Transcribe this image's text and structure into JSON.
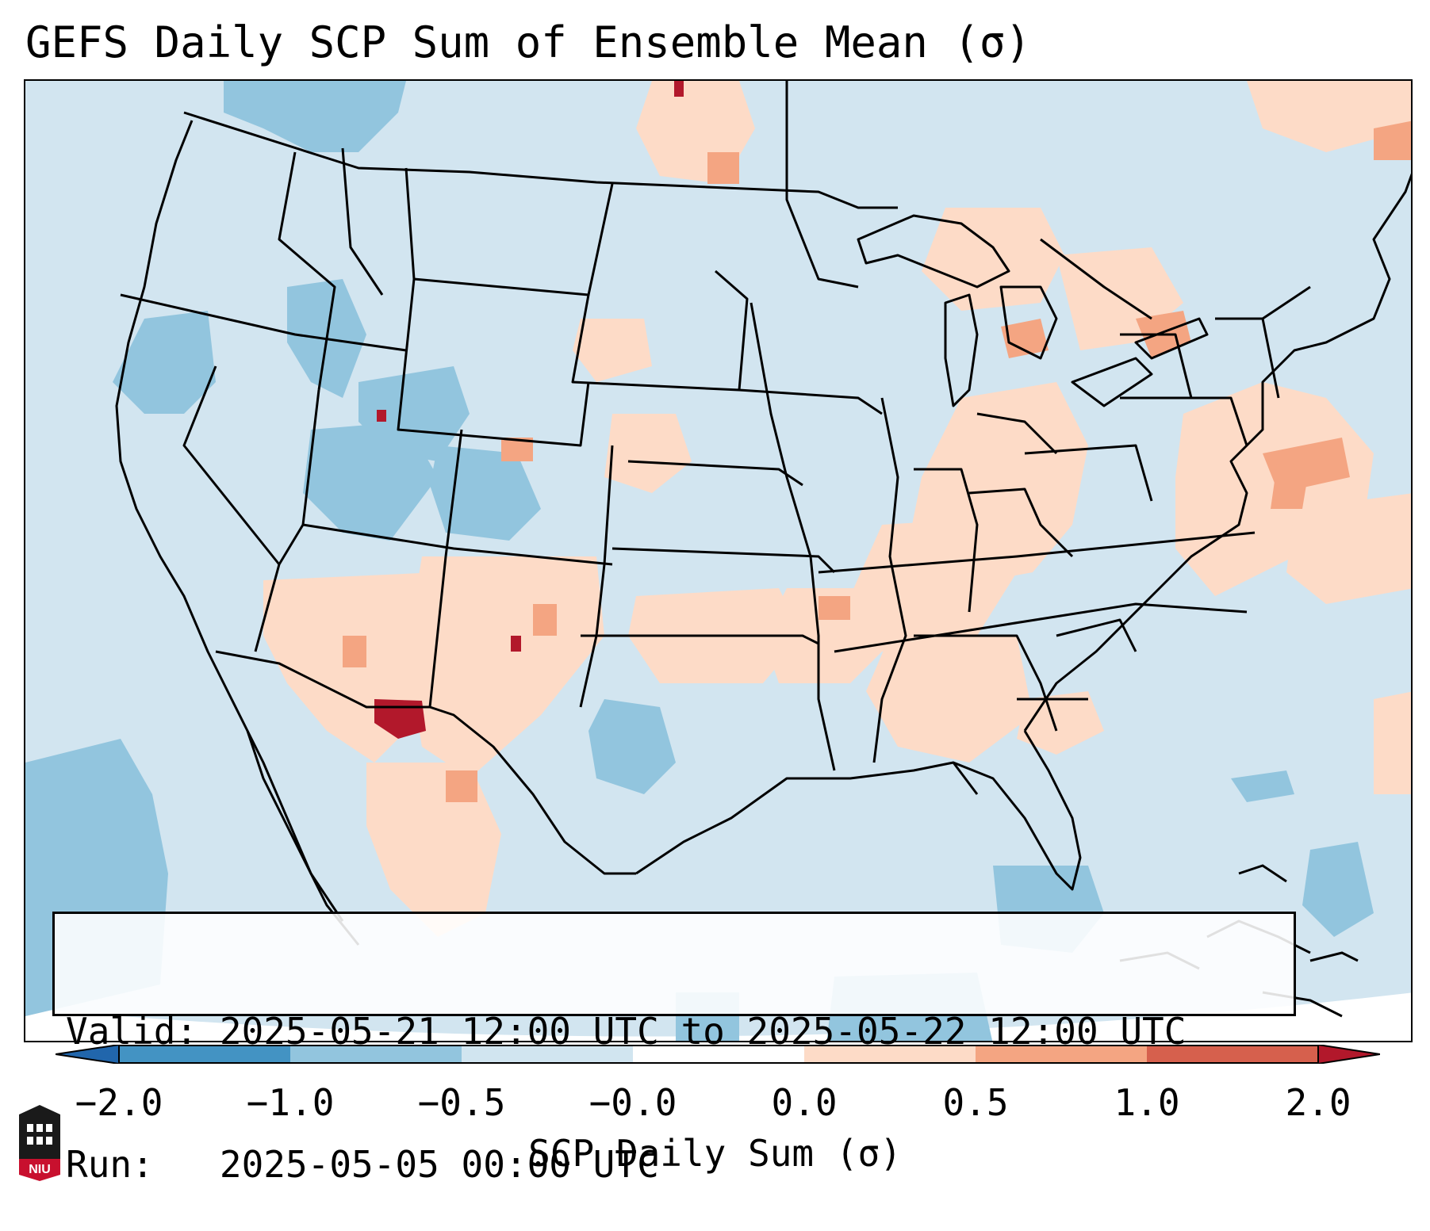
{
  "title": "GEFS Daily SCP Sum of Ensemble Mean (σ)",
  "info": {
    "valid_label": "Valid:",
    "valid_value": "2025-05-21 12:00 UTC to 2025-05-22 12:00 UTC",
    "run_label": "Run:",
    "run_value": "2025-05-05 00:00 UTC"
  },
  "colorbar": {
    "label": "SCP Daily Sum (σ)",
    "ticks": [
      "−2.0",
      "−1.0",
      "−0.5",
      "−0.0",
      "0.0",
      "0.5",
      "1.0",
      "2.0"
    ],
    "colors": [
      "#4393c3",
      "#92c5de",
      "#d1e5f0",
      "#fddbc7",
      "#f4a582",
      "#d6604d"
    ],
    "extend_low_color": "#2166ac",
    "extend_high_color": "#b2182b"
  },
  "logo": {
    "text": "NIU",
    "icon": "university-crest-icon"
  }
}
